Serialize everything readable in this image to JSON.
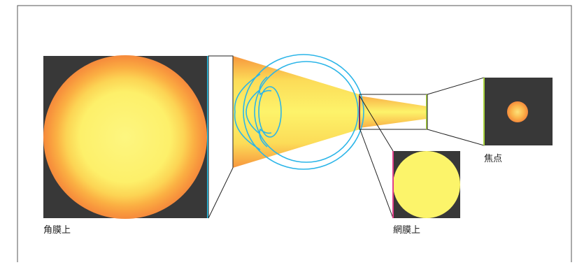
{
  "labels": {
    "cornea": "角膜上",
    "retina": "網膜上",
    "focus": "焦点"
  },
  "colors": {
    "frame": "#555555",
    "panel_dark": "#383838",
    "sun_outer": "#f58a3c",
    "sun_mid": "#fbbf45",
    "sun_inner": "#fdf37a",
    "retina_disc": "#fcf46a",
    "focus_outer": "#f58a3c",
    "focus_inner": "#fde27a",
    "eye_outline": "#2bb5e8",
    "light_beam": "#fce25a",
    "light_beam_edge": "#f58a3c",
    "accent_cyan": "#29c3ea",
    "accent_pink": "#e0408a",
    "accent_green": "#a8d23c"
  }
}
